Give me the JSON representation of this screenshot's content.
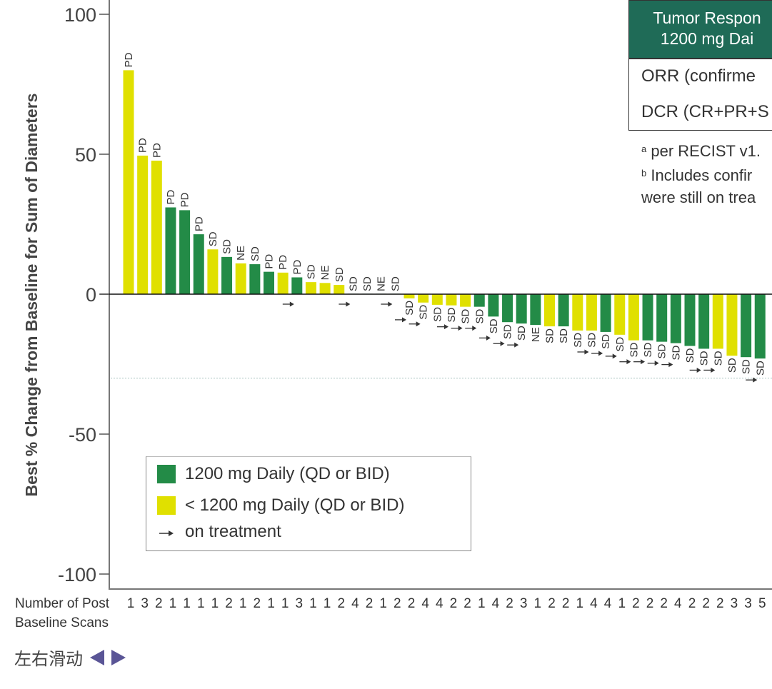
{
  "chart_data": {
    "type": "bar",
    "title": "",
    "ylabel": "Best % Change from Baseline for Sum of Diameters",
    "xlabel": "",
    "ylim": [
      -100,
      100
    ],
    "yticks": [
      100,
      50,
      0,
      -50,
      -100
    ],
    "ytick_labels": [
      "100",
      "50",
      "0",
      "-50",
      "-100"
    ],
    "reference_line": -30,
    "scan_row_title": [
      "Number of Post",
      "Baseline Scans"
    ],
    "colors": {
      "1200": "#238b47",
      "lt1200": "#e0e000"
    },
    "bars": [
      {
        "value": 80,
        "dose": "lt1200",
        "response": "PD",
        "on_treatment": false,
        "scans": "1"
      },
      {
        "value": 49.5,
        "dose": "lt1200",
        "response": "PD",
        "on_treatment": false,
        "scans": "3"
      },
      {
        "value": 47.7,
        "dose": "lt1200",
        "response": "PD",
        "on_treatment": false,
        "scans": "2"
      },
      {
        "value": 31,
        "dose": "1200",
        "response": "PD",
        "on_treatment": false,
        "scans": "1"
      },
      {
        "value": 30,
        "dose": "1200",
        "response": "PD",
        "on_treatment": false,
        "scans": "1"
      },
      {
        "value": 21.4,
        "dose": "1200",
        "response": "PD",
        "on_treatment": false,
        "scans": "1"
      },
      {
        "value": 16,
        "dose": "lt1200",
        "response": "SD",
        "on_treatment": false,
        "scans": "1"
      },
      {
        "value": 13.3,
        "dose": "1200",
        "response": "SD",
        "on_treatment": false,
        "scans": "2"
      },
      {
        "value": 11,
        "dose": "lt1200",
        "response": "NE",
        "on_treatment": false,
        "scans": "1"
      },
      {
        "value": 10.7,
        "dose": "1200",
        "response": "SD",
        "on_treatment": false,
        "scans": "2"
      },
      {
        "value": 8,
        "dose": "1200",
        "response": "PD",
        "on_treatment": false,
        "scans": "1"
      },
      {
        "value": 7.7,
        "dose": "lt1200",
        "response": "PD",
        "on_treatment": false,
        "scans": "1"
      },
      {
        "value": 6,
        "dose": "1200",
        "response": "PD",
        "on_treatment": true,
        "scans": "3"
      },
      {
        "value": 4.3,
        "dose": "lt1200",
        "response": "SD",
        "on_treatment": false,
        "scans": "1"
      },
      {
        "value": 4,
        "dose": "lt1200",
        "response": "NE",
        "on_treatment": false,
        "scans": "1"
      },
      {
        "value": 3.3,
        "dose": "lt1200",
        "response": "SD",
        "on_treatment": false,
        "scans": "2"
      },
      {
        "value": 0,
        "dose": "1200",
        "response": "SD",
        "on_treatment": true,
        "scans": "4"
      },
      {
        "value": 0,
        "dose": "1200",
        "response": "SD",
        "on_treatment": false,
        "scans": "2"
      },
      {
        "value": 0,
        "dose": "1200",
        "response": "NE",
        "on_treatment": false,
        "scans": "1"
      },
      {
        "value": 0,
        "dose": "1200",
        "response": "SD",
        "on_treatment": true,
        "scans": "2"
      },
      {
        "value": -1.5,
        "dose": "lt1200",
        "response": "SD",
        "on_treatment": true,
        "scans": "2"
      },
      {
        "value": -3,
        "dose": "lt1200",
        "response": "SD",
        "on_treatment": true,
        "scans": "4"
      },
      {
        "value": -3.8,
        "dose": "lt1200",
        "response": "SD",
        "on_treatment": false,
        "scans": "4"
      },
      {
        "value": -4,
        "dose": "lt1200",
        "response": "SD",
        "on_treatment": true,
        "scans": "2"
      },
      {
        "value": -4.5,
        "dose": "lt1200",
        "response": "SD",
        "on_treatment": true,
        "scans": "2"
      },
      {
        "value": -4.5,
        "dose": "1200",
        "response": "SD",
        "on_treatment": true,
        "scans": "1"
      },
      {
        "value": -8,
        "dose": "1200",
        "response": "SD",
        "on_treatment": true,
        "scans": "4"
      },
      {
        "value": -10,
        "dose": "1200",
        "response": "SD",
        "on_treatment": true,
        "scans": "2"
      },
      {
        "value": -10.5,
        "dose": "1200",
        "response": "SD",
        "on_treatment": true,
        "scans": "3"
      },
      {
        "value": -11,
        "dose": "1200",
        "response": "NE",
        "on_treatment": false,
        "scans": "1"
      },
      {
        "value": -11.5,
        "dose": "lt1200",
        "response": "SD",
        "on_treatment": false,
        "scans": "2"
      },
      {
        "value": -11.5,
        "dose": "1200",
        "response": "SD",
        "on_treatment": false,
        "scans": "2"
      },
      {
        "value": -13,
        "dose": "lt1200",
        "response": "SD",
        "on_treatment": false,
        "scans": "1"
      },
      {
        "value": -13,
        "dose": "lt1200",
        "response": "SD",
        "on_treatment": true,
        "scans": "4"
      },
      {
        "value": -13.5,
        "dose": "1200",
        "response": "SD",
        "on_treatment": true,
        "scans": "4"
      },
      {
        "value": -14.5,
        "dose": "lt1200",
        "response": "SD",
        "on_treatment": true,
        "scans": "1"
      },
      {
        "value": -16.5,
        "dose": "lt1200",
        "response": "SD",
        "on_treatment": true,
        "scans": "2"
      },
      {
        "value": -16.5,
        "dose": "1200",
        "response": "SD",
        "on_treatment": true,
        "scans": "2"
      },
      {
        "value": -17,
        "dose": "1200",
        "response": "SD",
        "on_treatment": true,
        "scans": "2"
      },
      {
        "value": -17.5,
        "dose": "1200",
        "response": "SD",
        "on_treatment": true,
        "scans": "4"
      },
      {
        "value": -18.5,
        "dose": "1200",
        "response": "SD",
        "on_treatment": false,
        "scans": "2"
      },
      {
        "value": -19.5,
        "dose": "1200",
        "response": "SD",
        "on_treatment": true,
        "scans": "2"
      },
      {
        "value": -19.5,
        "dose": "lt1200",
        "response": "SD",
        "on_treatment": true,
        "scans": "2"
      },
      {
        "value": -22,
        "dose": "lt1200",
        "response": "SD",
        "on_treatment": false,
        "scans": "3"
      },
      {
        "value": -22.5,
        "dose": "1200",
        "response": "SD",
        "on_treatment": false,
        "scans": "3"
      },
      {
        "value": -23,
        "dose": "1200",
        "response": "SD",
        "on_treatment": true,
        "scans": "5"
      }
    ],
    "legend": {
      "items": [
        {
          "label": "1200 mg Daily (QD or BID)",
          "color": "#238b47",
          "icon": "square"
        },
        {
          "label": "< 1200 mg Daily (QD or BID)",
          "color": "#e0e000",
          "icon": "square"
        },
        {
          "label": "on treatment",
          "icon": "arrow-right-icon"
        }
      ],
      "placement": "bottom-left"
    }
  },
  "table": {
    "header_line1": "Tumor Respon",
    "header_line2": "1200 mg Dai",
    "rows": [
      "ORR (confirme",
      "DCR (CR+PR+S"
    ],
    "header_color": "#1f6b57"
  },
  "footnotes": {
    "a_marker": "a",
    "a_text": " per RECIST v1.",
    "b_marker": "b",
    "b_text": " Includes confir",
    "b_text_cont": "were still on trea"
  },
  "nav": {
    "label": "左右滑动",
    "prev_icon": "triangle-left-icon",
    "next_icon": "triangle-right-icon",
    "accent": "#5a5596"
  }
}
